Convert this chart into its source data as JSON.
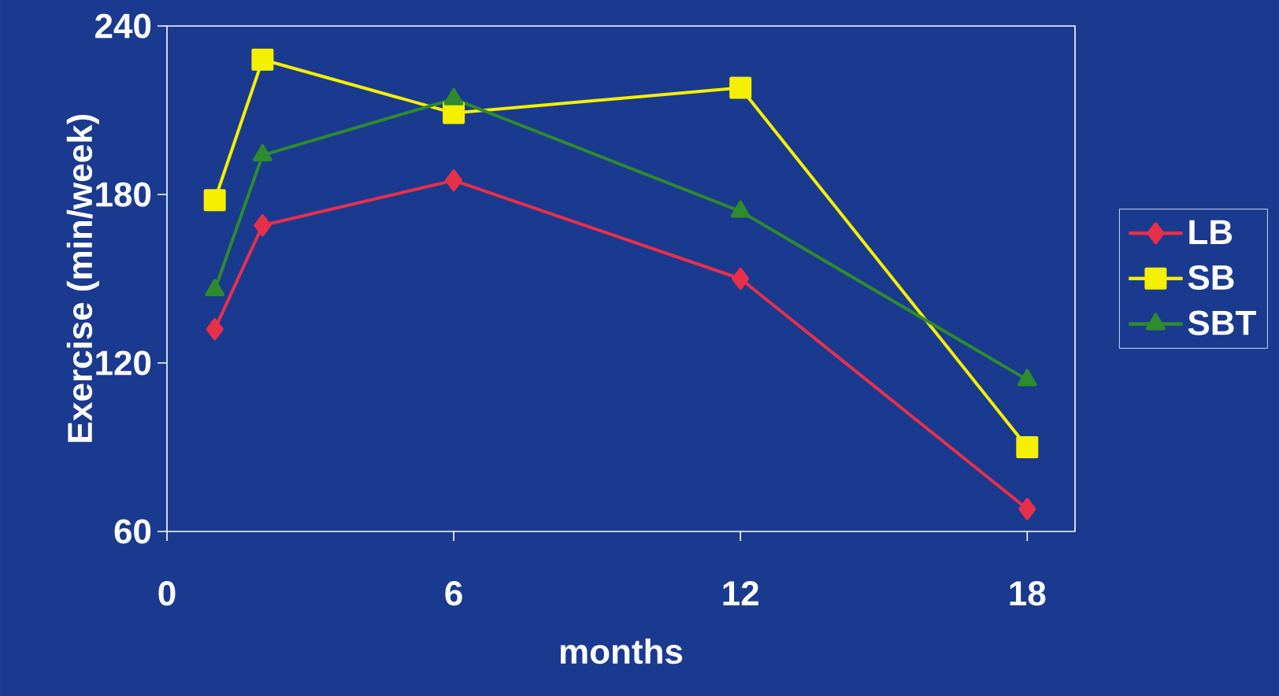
{
  "chart_data": {
    "type": "line",
    "xlabel": "months",
    "ylabel": "Exercise (min/week)",
    "x": [
      1,
      2,
      6,
      12,
      18
    ],
    "series": [
      {
        "name": "LB",
        "color": "#e8304a",
        "marker": "diamond",
        "values": [
          132,
          169,
          185,
          150,
          68
        ]
      },
      {
        "name": "SB",
        "color": "#f5f000",
        "marker": "square",
        "values": [
          178,
          228,
          209,
          218,
          90
        ]
      },
      {
        "name": "SBT",
        "color": "#2e8b2e",
        "marker": "triangle",
        "values": [
          146,
          194,
          214,
          174,
          114
        ]
      }
    ],
    "xlim": [
      0,
      19
    ],
    "ylim": [
      60,
      240
    ],
    "xticks": [
      0,
      6,
      12,
      18
    ],
    "yticks": [
      60,
      120,
      180,
      240
    ],
    "legend": "right"
  }
}
